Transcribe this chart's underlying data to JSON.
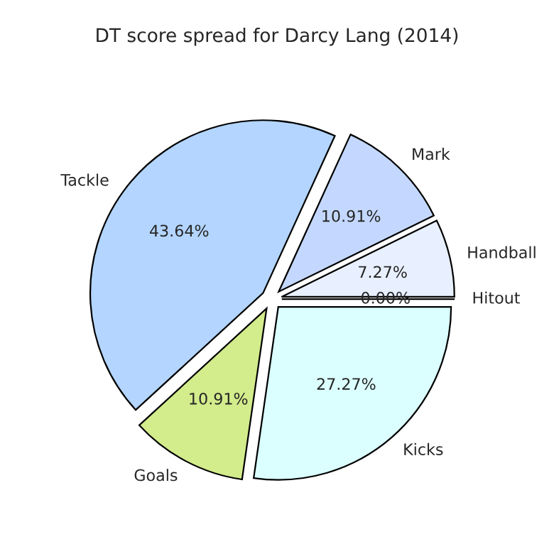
{
  "chart_data": {
    "type": "pie",
    "title": "DT score spread for Darcy Lang (2014)",
    "categories": [
      "Hitout",
      "Handball",
      "Mark",
      "Tackle",
      "Goals",
      "Kicks"
    ],
    "values": [
      0,
      7.27,
      10.91,
      43.64,
      10.91,
      27.27
    ],
    "value_labels": [
      "0.00%",
      "7.27%",
      "10.91%",
      "43.64%",
      "10.91%",
      "27.27%"
    ],
    "colors": [
      "#ffffff",
      "#e8f0ff",
      "#c4d8ff",
      "#b3d5ff",
      "#d3ec8c",
      "#dbffff"
    ]
  }
}
